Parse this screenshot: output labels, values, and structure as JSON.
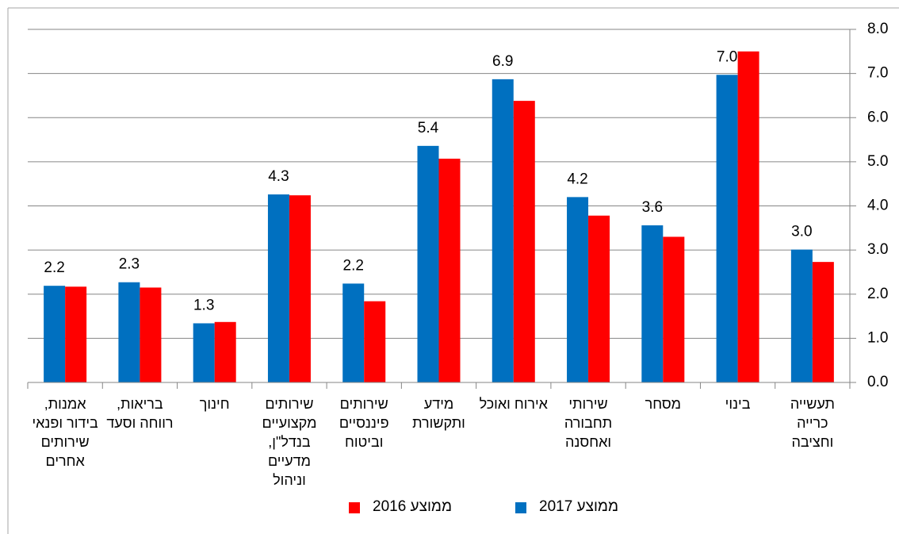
{
  "chart_data": {
    "type": "bar",
    "categories": [
      "תעשייה כרייה וחציבה",
      "בינוי",
      "מסחר",
      "שירותי תחבורה ואחסנה",
      "אירוח ואוכל",
      "מידע ותקשורת",
      "שירותים פיננסיים וביטוח",
      "שירותים מקצועיים בנדל\"ן, מדעיים וניהול",
      "חינוך",
      "בריאות, רווחה וסעד",
      "אמנות, בידור ופנאי שירותים אחרים"
    ],
    "series": [
      {
        "name": "ממוצע 2017",
        "color": "#0070c0",
        "values": [
          3.01,
          6.97,
          3.56,
          4.2,
          6.87,
          5.36,
          2.24,
          4.26,
          1.34,
          2.27,
          2.19
        ],
        "value_labels": [
          "3.0",
          "7.0",
          "3.6",
          "4.2",
          "6.9",
          "5.4",
          "2.2",
          "4.3",
          "1.3",
          "2.3",
          "2.2"
        ]
      },
      {
        "name": "ממוצע 2016",
        "color": "#ff0000",
        "values": [
          2.73,
          7.5,
          3.3,
          3.78,
          6.38,
          5.07,
          1.84,
          4.24,
          1.37,
          2.15,
          2.17
        ]
      }
    ],
    "ylim": [
      0,
      8
    ],
    "yticks": [
      {
        "value": 0,
        "label": "0.0"
      },
      {
        "value": 1,
        "label": "1.0"
      },
      {
        "value": 2,
        "label": "2.0"
      },
      {
        "value": 3,
        "label": "3.0"
      },
      {
        "value": 4,
        "label": "4.0"
      },
      {
        "value": 5,
        "label": "5.0"
      },
      {
        "value": 6,
        "label": "6.0"
      },
      {
        "value": 7,
        "label": "7.0"
      },
      {
        "value": 8,
        "label": "8.0"
      }
    ],
    "grid": true,
    "y_axis_side": "right",
    "direction": "rtl",
    "legend": "bottom"
  }
}
